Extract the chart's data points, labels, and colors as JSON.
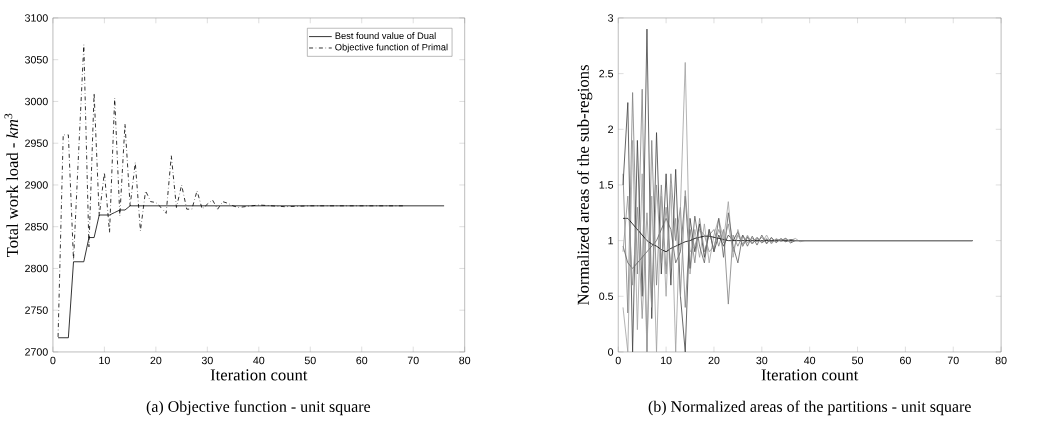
{
  "chart_data": [
    {
      "type": "line",
      "xlabel": "Iteration count",
      "ylabel": "Total work load - *km*$^{3}$",
      "xlim": [
        0,
        80
      ],
      "ylim": [
        2700,
        3100
      ],
      "xticks": [
        0,
        10,
        20,
        30,
        40,
        50,
        60,
        70,
        80
      ],
      "yticks": [
        2700,
        2750,
        2800,
        2850,
        2900,
        2950,
        3000,
        3050,
        3100
      ],
      "legend": "top right",
      "annotations": [
        "(a) Objective function - unit square"
      ],
      "series": [
        {
          "name": "Best found value of Dual",
          "color": "#000000",
          "line_style": "solid",
          "x": [
            1,
            2,
            3,
            4,
            5,
            6,
            7,
            8,
            9,
            10,
            11,
            12,
            13,
            14,
            15,
            20,
            30,
            40,
            50,
            60,
            70,
            76
          ],
          "values": [
            2717,
            2717,
            2717,
            2808,
            2808,
            2808,
            2837,
            2837,
            2864,
            2864,
            2864,
            2867,
            2870,
            2870,
            2875,
            2875,
            2875,
            2875,
            2875,
            2875,
            2875,
            2875
          ]
        },
        {
          "name": "Objective function of Primal",
          "color": "#000000",
          "line_style": "dashdot",
          "x": [
            1,
            2,
            3,
            4,
            5,
            6,
            7,
            8,
            9,
            10,
            11,
            12,
            13,
            14,
            15,
            16,
            17,
            18,
            19,
            20,
            21,
            22,
            23,
            24,
            25,
            26,
            27,
            28,
            29,
            30,
            31,
            32,
            33,
            34,
            35,
            36,
            40,
            45,
            50,
            60,
            68
          ],
          "values": [
            2718,
            2960,
            2960,
            2810,
            2940,
            3068,
            2826,
            3010,
            2863,
            2915,
            2843,
            3004,
            2863,
            2973,
            2875,
            2927,
            2845,
            2893,
            2880,
            2879,
            2873,
            2866,
            2935,
            2873,
            2900,
            2871,
            2871,
            2893,
            2871,
            2877,
            2882,
            2871,
            2880,
            2878,
            2875,
            2873,
            2876,
            2874,
            2875,
            2875,
            2875
          ]
        }
      ]
    },
    {
      "type": "line",
      "xlabel": "Iteration count",
      "ylabel": "Normalized areas of the sub-regions",
      "xlim": [
        0,
        80
      ],
      "ylim": [
        0,
        3
      ],
      "xticks": [
        0,
        10,
        20,
        30,
        40,
        50,
        60,
        70,
        80
      ],
      "yticks": [
        0,
        0.5,
        1,
        1.5,
        2,
        2.5,
        3
      ],
      "annotations": [
        "(b) Normalized areas of the partitions - unit square"
      ],
      "series": [
        {
          "color": "#808080",
          "line_style": "solid",
          "x": [
            1,
            2,
            3,
            4,
            5,
            6,
            7,
            8,
            9,
            10,
            11,
            12,
            13,
            14,
            15,
            16,
            17,
            18,
            19,
            20,
            21,
            22,
            23,
            24,
            25,
            26,
            27,
            28,
            29,
            30,
            31,
            32,
            33,
            34,
            35,
            36,
            37,
            38,
            39,
            40,
            45,
            50,
            60,
            74
          ],
          "values": [
            1.6,
            0.35,
            2.33,
            0.7,
            2.36,
            0.0,
            1.9,
            0.6,
            1.5,
            0.7,
            1.6,
            1.0,
            1.3,
            0.4,
            1.1,
            0.8,
            1.2,
            0.9,
            1.05,
            1.1,
            0.95,
            1.1,
            0.43,
            1.05,
            0.95,
            1.05,
            0.98,
            1.02,
            0.99,
            1.03,
            0.98,
            1.02,
            0.99,
            1.01,
            0.99,
            1.01,
            1,
            1,
            1,
            1,
            1,
            1,
            1,
            1
          ]
        },
        {
          "color": "#404040",
          "line_style": "solid",
          "x": [
            1,
            2,
            3,
            4,
            5,
            6,
            7,
            8,
            9,
            10,
            11,
            12,
            13,
            14,
            15,
            16,
            17,
            18,
            19,
            20,
            21,
            22,
            23,
            24,
            25,
            26,
            27,
            28,
            29,
            30,
            31,
            32,
            33,
            34,
            35,
            36,
            37,
            38,
            39,
            40,
            45,
            50,
            60,
            74
          ],
          "values": [
            1.5,
            2.24,
            0.0,
            1.9,
            0.5,
            2.9,
            0.3,
            1.97,
            0.7,
            1.6,
            0.6,
            1.64,
            0.5,
            0.0,
            1.2,
            0.9,
            1.15,
            0.85,
            1.1,
            0.9,
            1.05,
            0.95,
            1.05,
            1.0,
            1.08,
            0.95,
            1.03,
            0.97,
            1.02,
            0.98,
            1.01,
            0.99,
            1.01,
            1.0,
            1.02,
            0.98,
            1,
            1,
            1,
            1,
            1,
            1,
            1,
            1
          ]
        },
        {
          "color": "#a0a0a0",
          "line_style": "solid",
          "x": [
            1,
            2,
            3,
            4,
            5,
            6,
            7,
            8,
            9,
            10,
            11,
            12,
            13,
            14,
            15,
            16,
            17,
            18,
            19,
            20,
            21,
            22,
            23,
            24,
            25,
            26,
            27,
            28,
            29,
            30,
            31,
            32,
            33,
            34,
            35,
            36,
            37,
            38,
            39,
            40,
            45,
            50,
            60,
            74
          ],
          "values": [
            0.4,
            0.0,
            1.9,
            0.2,
            1.6,
            0.0,
            1.4,
            0.0,
            1.4,
            0.5,
            1.5,
            0.0,
            1.3,
            2.6,
            0.7,
            1.1,
            0.85,
            1.15,
            0.8,
            1.05,
            1.2,
            1.0,
            1.35,
            0.85,
            1.1,
            0.95,
            1.05,
            0.97,
            1.03,
            0.98,
            1.05,
            0.97,
            1.02,
            0.99,
            1.01,
            1.0,
            1.02,
            0.99,
            1,
            1,
            1,
            1,
            1,
            1
          ]
        },
        {
          "color": "#000000",
          "line_style": "solid",
          "x": [
            1,
            2,
            3,
            4,
            5,
            6,
            7,
            8,
            9,
            10,
            11,
            12,
            13,
            14,
            15,
            16,
            17,
            18,
            19,
            20,
            21,
            22,
            23,
            24,
            25,
            26,
            27,
            28,
            29,
            30,
            40,
            50,
            60,
            74
          ],
          "values": [
            1.2,
            1.2,
            1.15,
            1.1,
            1.05,
            1.0,
            0.97,
            0.95,
            0.92,
            0.9,
            0.93,
            0.95,
            0.97,
            0.99,
            1.0,
            1.02,
            1.03,
            1.04,
            1.04,
            1.03,
            1.02,
            1.01,
            1.0,
            1.0,
            1.0,
            1.0,
            1.0,
            1.0,
            1.0,
            1.0,
            1,
            1,
            1,
            1
          ]
        },
        {
          "color": "#606060",
          "line_style": "solid",
          "x": [
            1,
            2,
            3,
            4,
            5,
            6,
            7,
            8,
            9,
            10,
            11,
            12,
            13,
            14,
            15,
            16,
            17,
            18,
            19,
            20,
            21,
            22,
            23,
            24,
            25,
            26,
            27,
            28,
            29,
            30,
            31,
            32,
            33,
            34,
            35,
            36,
            37,
            38,
            39,
            40,
            45,
            50,
            60,
            74
          ],
          "values": [
            0.95,
            0.8,
            0.75,
            0.8,
            0.85,
            0.9,
            0.95,
            1.0,
            1.1,
            1.2,
            1.1,
            0.8,
            0.9,
            1.4,
            0.75,
            1.22,
            0.95,
            0.8,
            1.1,
            0.9,
            1.2,
            0.85,
            1.25,
            0.95,
            0.8,
            1.05,
            0.95,
            1.04,
            0.96,
            1.05,
            0.97,
            1.03,
            0.98,
            1.02,
            0.99,
            1.01,
            1,
            1,
            1,
            1,
            1,
            1,
            1,
            1
          ]
        },
        {
          "color": "#909090",
          "line_style": "solid",
          "x": [
            1,
            2,
            3,
            4,
            5,
            6,
            7,
            8,
            9,
            10,
            11,
            12,
            13,
            14,
            15,
            16,
            17,
            18,
            19,
            20,
            21,
            22,
            23,
            24,
            25,
            26,
            27,
            28,
            29,
            30,
            31,
            32,
            33,
            34,
            35,
            36,
            37,
            38,
            39,
            40,
            45,
            50,
            60,
            74
          ],
          "values": [
            0.9,
            1.4,
            0.6,
            1.3,
            0.3,
            1.25,
            0.4,
            1.5,
            0.8,
            1.3,
            0.75,
            1.2,
            0.5,
            1.45,
            0.9,
            0.95,
            1.1,
            1.05,
            0.9,
            0.95,
            1.1,
            0.98,
            1.15,
            0.9,
            1.05,
            0.97,
            1.04,
            0.98,
            1.03,
            0.99,
            1.02,
            0.98,
            1.01,
            1.0,
            1.02,
            0.99,
            1,
            1,
            1,
            1,
            1,
            1,
            1,
            1
          ]
        }
      ]
    }
  ]
}
